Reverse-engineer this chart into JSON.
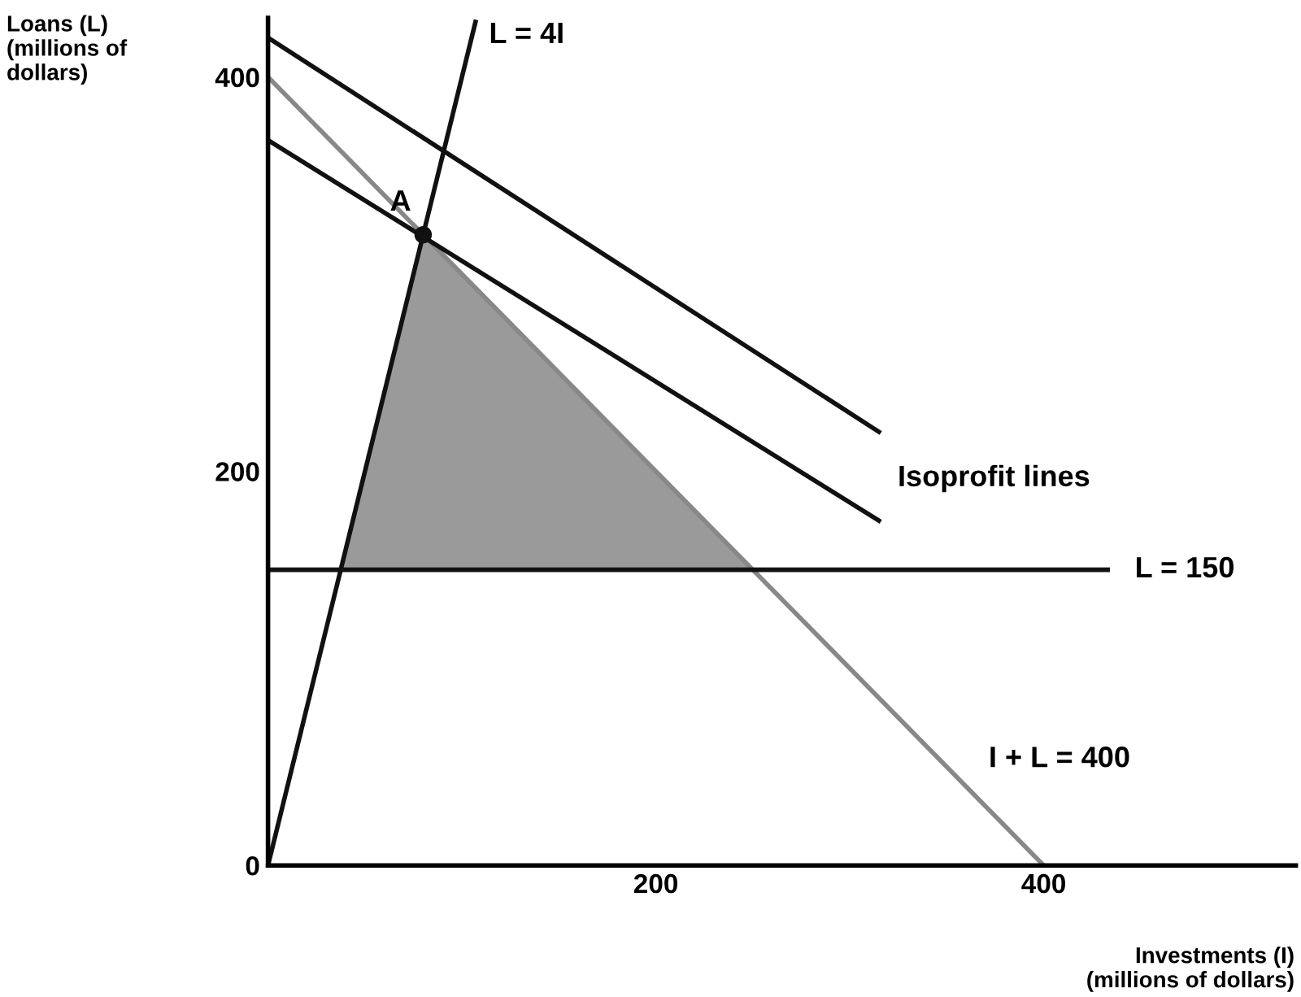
{
  "chart_data": {
    "type": "line",
    "xlabel": "Investments (I)\n(millions of dollars)",
    "ylabel": "Loans (L)\n(millions of\ndollars)",
    "xlim": [
      0,
      530
    ],
    "ylim": [
      0,
      430
    ],
    "xticks": [
      200,
      400
    ],
    "yticks": [
      0,
      200,
      400
    ],
    "grid": false,
    "line_style": "solid",
    "series": [
      {
        "type": "area",
        "color": "#9a9a9a",
        "x": [
          37.5,
          80,
          250
        ],
        "values": [
          150,
          320,
          150
        ]
      },
      {
        "name": "I + L = 400",
        "color": "#888888",
        "x": [
          0,
          400
        ],
        "values": [
          400,
          0
        ]
      },
      {
        "name": "L = 4I",
        "color": "#111111",
        "x": [
          0,
          107
        ],
        "values": [
          0,
          428
        ]
      },
      {
        "name": "L = 150",
        "color": "#111111",
        "x": [
          0,
          433
        ],
        "values": [
          150,
          150
        ]
      },
      {
        "color": "#111111",
        "x": [
          0,
          315
        ],
        "values": [
          420,
          220
        ]
      },
      {
        "color": "#111111",
        "x": [
          0,
          315
        ],
        "values": [
          368,
          175
        ]
      },
      {
        "name": "A",
        "type": "scatter",
        "color": "#111111",
        "marker": "circle",
        "x": [
          80
        ],
        "values": [
          320
        ]
      }
    ],
    "annotations": [
      "Isoprofit lines"
    ]
  }
}
